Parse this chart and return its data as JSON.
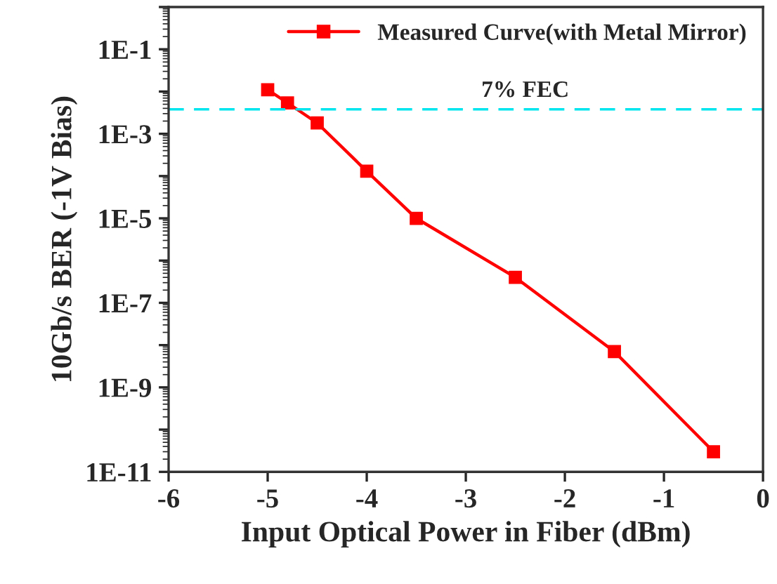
{
  "chart_data": {
    "type": "line",
    "xlabel": "Input Optical Power in Fiber (dBm)",
    "ylabel": "10Gb/s BER (-1V Bias)",
    "x": [
      -5,
      -4.8,
      -4.5,
      -4,
      -3.5,
      -2.5,
      -1.5,
      -0.5
    ],
    "series": [
      {
        "name": "Measured Curve(with Metal Mirror)",
        "color": "#ff0000",
        "values": [
          0.011,
          0.0054,
          0.0018,
          0.00013,
          1e-05,
          4e-07,
          7e-09,
          3e-11
        ]
      }
    ],
    "log": "y",
    "xlim": [
      -6,
      0
    ],
    "xticks": [
      -6,
      -5,
      -4,
      -3,
      -2,
      -1,
      0
    ],
    "ylim": [
      1e-11,
      1
    ],
    "yticks": [
      {
        "value": 1,
        "label": null
      },
      {
        "value": 0.1,
        "label": "1E-1"
      },
      {
        "value": 0.01,
        "label": null
      },
      {
        "value": 0.001,
        "label": "1E-3"
      },
      {
        "value": 0.0001,
        "label": null
      },
      {
        "value": 1e-05,
        "label": "1E-5"
      },
      {
        "value": 1e-06,
        "label": null
      },
      {
        "value": 1e-07,
        "label": "1E-7"
      },
      {
        "value": 1e-08,
        "label": null
      },
      {
        "value": 1e-09,
        "label": "1E-9"
      },
      {
        "value": 1e-10,
        "label": null
      },
      {
        "value": 1e-11,
        "label": "1E-11"
      }
    ],
    "ref_lines": [
      {
        "axis": "y",
        "value": 0.0038,
        "label": "7% FEC",
        "color": "#00e5ee",
        "line_style": "dashed"
      }
    ],
    "marker": "square",
    "line_style": "solid",
    "grid": false,
    "legend": "top right"
  }
}
